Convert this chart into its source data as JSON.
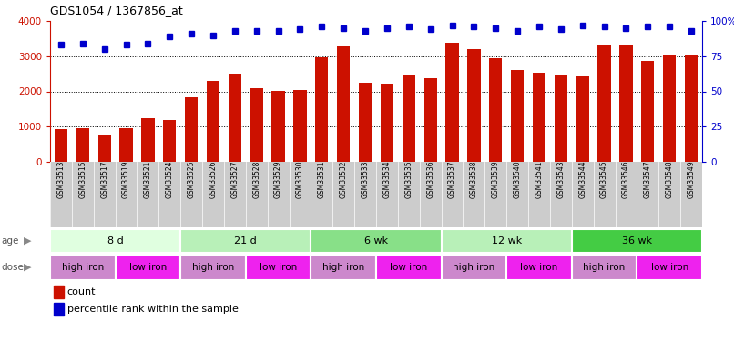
{
  "title": "GDS1054 / 1367856_at",
  "samples": [
    "GSM33513",
    "GSM33515",
    "GSM33517",
    "GSM33519",
    "GSM33521",
    "GSM33524",
    "GSM33525",
    "GSM33526",
    "GSM33527",
    "GSM33528",
    "GSM33529",
    "GSM33530",
    "GSM33531",
    "GSM33532",
    "GSM33533",
    "GSM33534",
    "GSM33535",
    "GSM33536",
    "GSM33537",
    "GSM33538",
    "GSM33539",
    "GSM33540",
    "GSM33541",
    "GSM33543",
    "GSM33544",
    "GSM33545",
    "GSM33546",
    "GSM33547",
    "GSM33548",
    "GSM33549"
  ],
  "counts": [
    930,
    960,
    780,
    960,
    1230,
    1190,
    1820,
    2300,
    2500,
    2100,
    2020,
    2050,
    2960,
    3280,
    2250,
    2230,
    2490,
    2380,
    3380,
    3200,
    2940,
    2600,
    2520,
    2490,
    2420,
    3310,
    3310,
    2870,
    3010,
    3030
  ],
  "percentile_ranks": [
    83,
    84,
    80,
    83,
    84,
    89,
    91,
    90,
    93,
    93,
    93,
    94,
    96,
    95,
    93,
    95,
    96,
    94,
    97,
    96,
    95,
    93,
    96,
    94,
    97,
    96,
    95,
    96,
    96,
    93
  ],
  "age_groups": [
    {
      "label": "8 d",
      "start": 0,
      "end": 6,
      "color": "#e0ffe0"
    },
    {
      "label": "21 d",
      "start": 6,
      "end": 12,
      "color": "#b8f0b8"
    },
    {
      "label": "6 wk",
      "start": 12,
      "end": 18,
      "color": "#88e088"
    },
    {
      "label": "12 wk",
      "start": 18,
      "end": 24,
      "color": "#b8f0b8"
    },
    {
      "label": "36 wk",
      "start": 24,
      "end": 30,
      "color": "#44cc44"
    }
  ],
  "dose_groups": [
    {
      "label": "high iron",
      "start": 0,
      "end": 3,
      "is_high": true
    },
    {
      "label": "low iron",
      "start": 3,
      "end": 6,
      "is_high": false
    },
    {
      "label": "high iron",
      "start": 6,
      "end": 9,
      "is_high": true
    },
    {
      "label": "low iron",
      "start": 9,
      "end": 12,
      "is_high": false
    },
    {
      "label": "high iron",
      "start": 12,
      "end": 15,
      "is_high": true
    },
    {
      "label": "low iron",
      "start": 15,
      "end": 18,
      "is_high": false
    },
    {
      "label": "high iron",
      "start": 18,
      "end": 21,
      "is_high": true
    },
    {
      "label": "low iron",
      "start": 21,
      "end": 24,
      "is_high": false
    },
    {
      "label": "high iron",
      "start": 24,
      "end": 27,
      "is_high": true
    },
    {
      "label": "low iron",
      "start": 27,
      "end": 30,
      "is_high": false
    }
  ],
  "high_iron_color": "#cc88cc",
  "low_iron_color": "#ee22ee",
  "bar_color": "#cc1100",
  "dot_color": "#0000cc",
  "ylim_left": [
    0,
    4000
  ],
  "ylim_right": [
    0,
    100
  ],
  "yticks_left": [
    0,
    1000,
    2000,
    3000,
    4000
  ],
  "yticks_right": [
    0,
    25,
    50,
    75,
    100
  ],
  "yticklabels_right": [
    "0",
    "25",
    "50",
    "75",
    "100%"
  ],
  "tick_label_bg": "#cccccc",
  "background_color": "#ffffff"
}
